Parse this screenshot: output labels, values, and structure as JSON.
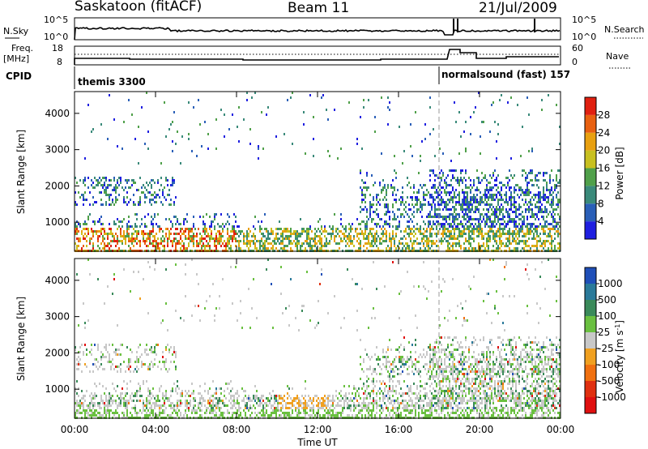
{
  "header": {
    "station": "Saskatoon (fitACF)",
    "beam": "Beam 11",
    "date": "21/Jul/2009"
  },
  "summary": {
    "nsky_label": "N.Sky",
    "nsky_ticks": [
      "10^5",
      "10^0"
    ],
    "nsearch_label": "N.Search",
    "nsearch_ticks": [
      "10^5",
      "10^0"
    ],
    "freq_label": "Freq.",
    "freq_unit": "[MHz]",
    "freq_ticks": [
      "18",
      "8"
    ],
    "nave_label": "Nave",
    "nave_ticks": [
      "60",
      "0"
    ],
    "cpid_label": "CPID",
    "cpid_segments": [
      {
        "name": "themis 3300",
        "start_hour": 0
      },
      {
        "name": "normalsound (fast) 157",
        "start_hour": 18.0
      }
    ]
  },
  "chart_data": [
    {
      "type": "heatmap",
      "quantity": "power",
      "ylabel": "Slant Range [km]",
      "xlabel": "",
      "yticks": [
        "1000",
        "2000",
        "3000",
        "4000"
      ],
      "ylim": [
        200,
        4600
      ],
      "xlim_hours": [
        0,
        24
      ],
      "colorbar": {
        "label": "Power [dB]",
        "ticks": [
          "4",
          "8",
          "12",
          "16",
          "20",
          "24",
          "28"
        ],
        "colors": [
          "#1f1fe0",
          "#2a5fb8",
          "#3a8a7a",
          "#50a04a",
          "#c8c020",
          "#e8a010",
          "#e86010",
          "#e02010"
        ]
      }
    },
    {
      "type": "heatmap",
      "quantity": "velocity",
      "ylabel": "Slant Range [km]",
      "xlabel": "Time UT",
      "xticks": [
        "00:00",
        "04:00",
        "08:00",
        "12:00",
        "16:00",
        "20:00",
        "00:00"
      ],
      "yticks": [
        "1000",
        "2000",
        "3000",
        "4000"
      ],
      "ylim": [
        200,
        4600
      ],
      "xlim_hours": [
        0,
        24
      ],
      "colorbar": {
        "label": "Velocity [m s",
        "label_exp": "-1",
        "ticks": [
          "1000",
          "500",
          "100",
          "25",
          "-25",
          "-100",
          "-500",
          "-1000"
        ],
        "colors": [
          "#1f4fb8",
          "#2a7a9a",
          "#3a8a5a",
          "#6ac040",
          "#c8c8c8",
          "#f0a020",
          "#f07010",
          "#e03010",
          "#e01010"
        ]
      }
    }
  ],
  "marker_hour": 18.0,
  "colors": {
    "axis": "#000000",
    "marker": "#999999"
  }
}
